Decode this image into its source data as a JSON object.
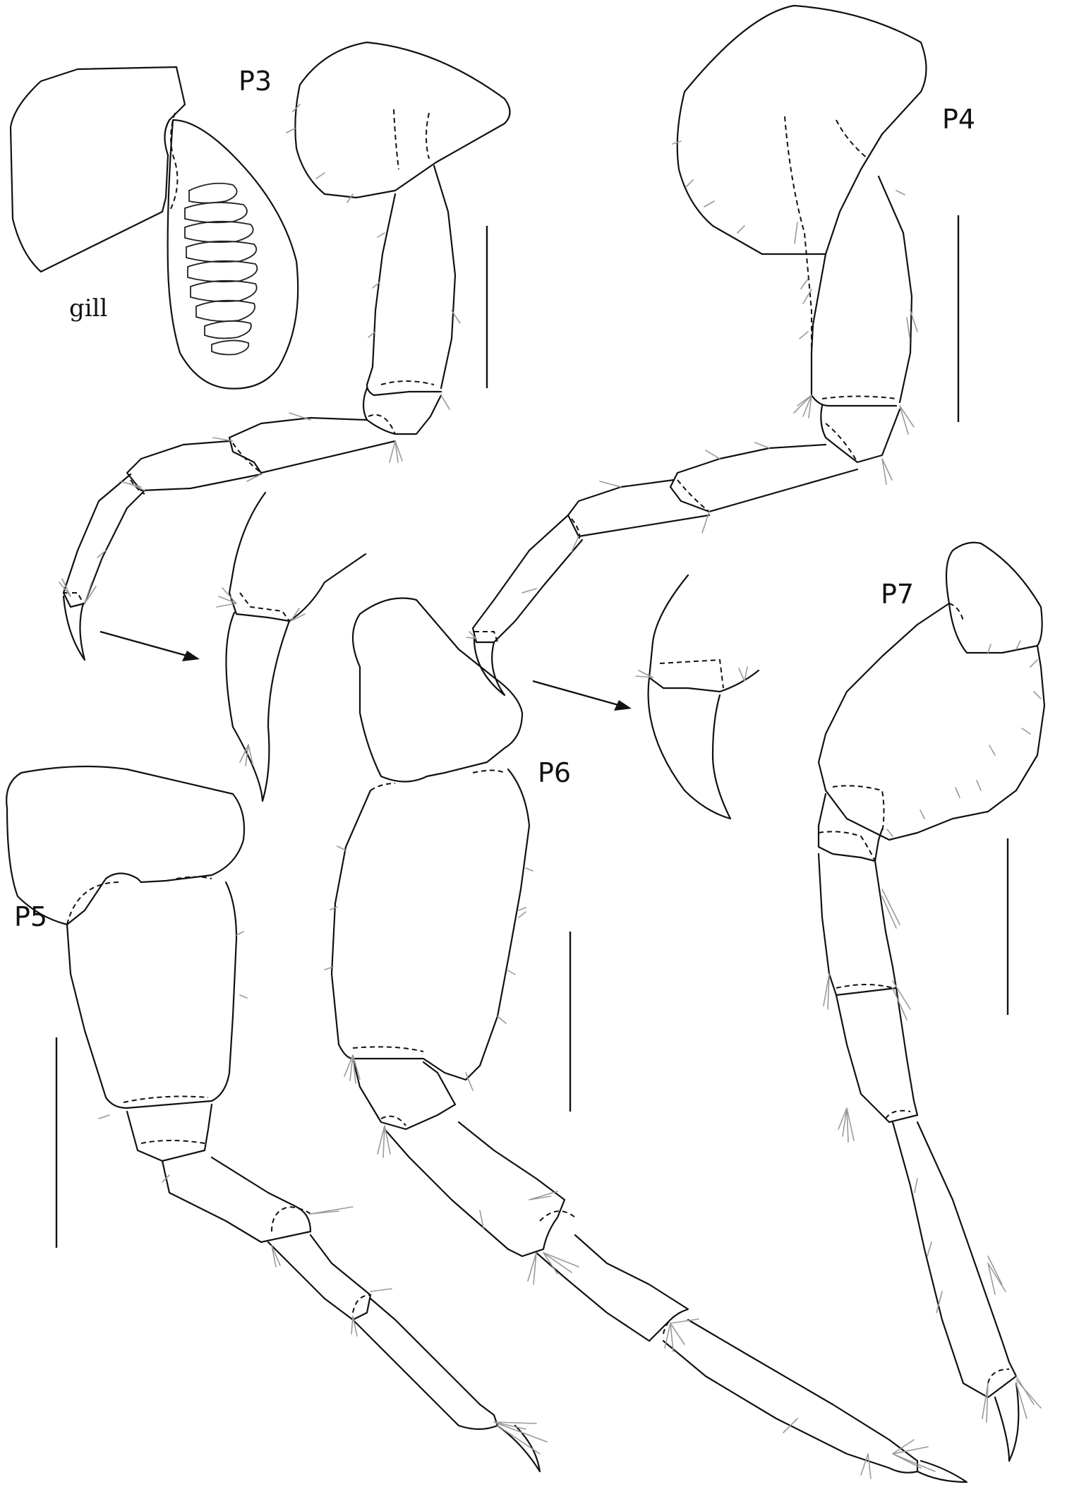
{
  "labels": {
    "p3": "P3",
    "p4": "P4",
    "p5": "P5",
    "p6": "P6",
    "p7": "P7",
    "gill": "gill"
  },
  "colors": {
    "line": "#111111",
    "setae": "#9a9a9a",
    "background": "#ffffff"
  }
}
